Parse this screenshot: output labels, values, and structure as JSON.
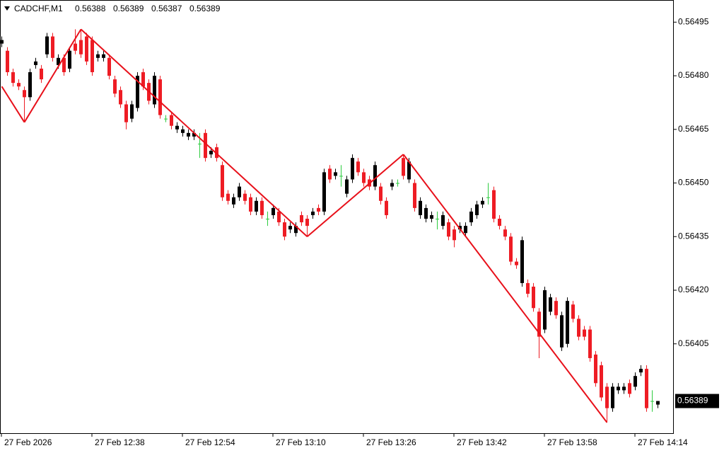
{
  "chart_data": {
    "type": "candlestick",
    "symbol": "CADCHF,M1",
    "categories": [
      "27 Feb 2026",
      null,
      null,
      null,
      null,
      null,
      null,
      null,
      null,
      null,
      null,
      null,
      null,
      null,
      null,
      null,
      "27 Feb 12:38",
      null,
      null,
      null,
      null,
      null,
      null,
      null,
      null,
      null,
      null,
      null,
      null,
      null,
      null,
      null,
      "27 Feb 12:54",
      null,
      null,
      null,
      null,
      null,
      null,
      null,
      null,
      null,
      null,
      null,
      null,
      null,
      null,
      null,
      "27 Feb 13:10",
      null,
      null,
      null,
      null,
      null,
      null,
      null,
      null,
      null,
      null,
      null,
      null,
      null,
      null,
      null,
      "27 Feb 13:26",
      null,
      null,
      null,
      null,
      null,
      null,
      null,
      null,
      null,
      null,
      null,
      null,
      null,
      null,
      null,
      "27 Feb 13:42",
      null,
      null,
      null,
      null,
      null,
      null,
      null,
      null,
      null,
      null,
      null,
      null,
      null,
      null,
      null,
      "27 Feb 13:58",
      null,
      null,
      null,
      null,
      null,
      null,
      null,
      null,
      null,
      null,
      null,
      null,
      null,
      null,
      null,
      "27 Feb 14:14",
      null,
      null,
      null,
      null
    ],
    "ohlc": [
      [
        0.56489,
        0.56491,
        0.56488,
        0.5649
      ],
      [
        0.56487,
        0.56488,
        0.5648,
        0.56481
      ],
      [
        0.56481,
        0.56482,
        0.56477,
        0.56478
      ],
      [
        0.56478,
        0.56479,
        0.56476,
        0.56477
      ],
      [
        0.56476,
        0.56477,
        0.56467,
        0.56474
      ],
      [
        0.56474,
        0.56482,
        0.56473,
        0.56481
      ],
      [
        0.56483,
        0.56485,
        0.56482,
        0.56484
      ],
      [
        0.56482,
        0.56483,
        0.56478,
        0.56479
      ],
      [
        0.56486,
        0.56492,
        0.56485,
        0.56491
      ],
      [
        0.56491,
        0.56492,
        0.56484,
        0.56485
      ],
      [
        0.56483,
        0.56486,
        0.56482,
        0.56485
      ],
      [
        0.56485,
        0.56486,
        0.5648,
        0.56481
      ],
      [
        0.56482,
        0.56488,
        0.56481,
        0.56487
      ],
      [
        0.56489,
        0.56493,
        0.56486,
        0.56487
      ],
      [
        0.5649,
        0.56493,
        0.56485,
        0.56486
      ],
      [
        0.56491,
        0.56492,
        0.56483,
        0.56484
      ],
      [
        0.5649,
        0.56491,
        0.5648,
        0.56481
      ],
      [
        0.56485,
        0.56487,
        0.56484,
        0.56486
      ],
      [
        0.56485,
        0.56487,
        0.56484,
        0.56486
      ],
      [
        0.56485,
        0.56486,
        0.56479,
        0.5648
      ],
      [
        0.56479,
        0.5648,
        0.56474,
        0.56475
      ],
      [
        0.56476,
        0.56477,
        0.56471,
        0.56472
      ],
      [
        0.56472,
        0.56473,
        0.56465,
        0.56467
      ],
      [
        0.56468,
        0.56473,
        0.56467,
        0.56472
      ],
      [
        0.56471,
        0.56481,
        0.5647,
        0.5648
      ],
      [
        0.56481,
        0.56482,
        0.56476,
        0.56477
      ],
      [
        0.56478,
        0.56479,
        0.56472,
        0.56473
      ],
      [
        0.56472,
        0.56481,
        0.56471,
        0.5648
      ],
      [
        0.56479,
        0.5648,
        0.56468,
        0.56469
      ],
      [
        0.56468,
        0.56469,
        0.56467,
        0.56468
      ],
      [
        0.56469,
        0.5647,
        0.56465,
        0.56466
      ],
      [
        0.56465,
        0.56467,
        0.56464,
        0.56466
      ],
      [
        0.56464,
        0.56466,
        0.56463,
        0.56465
      ],
      [
        0.56463,
        0.56465,
        0.56462,
        0.56464
      ],
      [
        0.56463,
        0.56465,
        0.56462,
        0.56464
      ],
      [
        0.56461,
        0.56464,
        0.56457,
        0.56461
      ],
      [
        0.56464,
        0.56465,
        0.56456,
        0.56457
      ],
      [
        0.56458,
        0.5646,
        0.56457,
        0.56459
      ],
      [
        0.5646,
        0.56461,
        0.56456,
        0.56457
      ],
      [
        0.56455,
        0.56456,
        0.56445,
        0.56446
      ],
      [
        0.56447,
        0.56448,
        0.56444,
        0.56445
      ],
      [
        0.56444,
        0.56447,
        0.56443,
        0.56446
      ],
      [
        0.56446,
        0.5645,
        0.56445,
        0.56449
      ],
      [
        0.56447,
        0.56448,
        0.56444,
        0.56445
      ],
      [
        0.56446,
        0.56447,
        0.56441,
        0.56442
      ],
      [
        0.56442,
        0.56446,
        0.56441,
        0.56445
      ],
      [
        0.56445,
        0.56446,
        0.5644,
        0.56441
      ],
      [
        0.5644,
        0.56442,
        0.56438,
        0.5644
      ],
      [
        0.56441,
        0.56444,
        0.5644,
        0.56443
      ],
      [
        0.56442,
        0.56443,
        0.56438,
        0.56439
      ],
      [
        0.56439,
        0.5644,
        0.56434,
        0.56435
      ],
      [
        0.56437,
        0.56439,
        0.56436,
        0.56438
      ],
      [
        0.56436,
        0.56439,
        0.56435,
        0.56438
      ],
      [
        0.56441,
        0.56442,
        0.56438,
        0.56439
      ],
      [
        0.5644,
        0.56441,
        0.56435,
        0.56438
      ],
      [
        0.56441,
        0.56443,
        0.5644,
        0.56442
      ],
      [
        0.56443,
        0.56444,
        0.56441,
        0.56442
      ],
      [
        0.56442,
        0.56454,
        0.56441,
        0.56453
      ],
      [
        0.56454,
        0.56455,
        0.5645,
        0.56451
      ],
      [
        0.56452,
        0.56454,
        0.56451,
        0.56453
      ],
      [
        0.56452,
        0.56455,
        0.56449,
        0.56452
      ],
      [
        0.56447,
        0.56452,
        0.56446,
        0.56451
      ],
      [
        0.56451,
        0.56458,
        0.5645,
        0.56457
      ],
      [
        0.56456,
        0.56457,
        0.56452,
        0.56453
      ],
      [
        0.56453,
        0.56454,
        0.56449,
        0.5645
      ],
      [
        0.56451,
        0.56452,
        0.56448,
        0.56449
      ],
      [
        0.56449,
        0.56456,
        0.56448,
        0.56455
      ],
      [
        0.56449,
        0.5645,
        0.56444,
        0.56445
      ],
      [
        0.56445,
        0.56446,
        0.5644,
        0.56441
      ],
      [
        0.56449,
        0.56451,
        0.56448,
        0.5645
      ],
      [
        0.5645,
        0.56451,
        0.56449,
        0.5645
      ],
      [
        0.56457,
        0.56458,
        0.56451,
        0.56452
      ],
      [
        0.56451,
        0.56457,
        0.5645,
        0.56456
      ],
      [
        0.5645,
        0.56451,
        0.56442,
        0.56443
      ],
      [
        0.56441,
        0.56446,
        0.5644,
        0.56445
      ],
      [
        0.5644,
        0.56444,
        0.56439,
        0.56443
      ],
      [
        0.5644,
        0.56442,
        0.56439,
        0.56441
      ],
      [
        0.5644,
        0.56442,
        0.56437,
        0.5644
      ],
      [
        0.56438,
        0.56442,
        0.56437,
        0.56441
      ],
      [
        0.56439,
        0.5644,
        0.56434,
        0.56435
      ],
      [
        0.56437,
        0.56438,
        0.56432,
        0.56434
      ],
      [
        0.56437,
        0.56439,
        0.56436,
        0.56438
      ],
      [
        0.56436,
        0.56439,
        0.56435,
        0.56438
      ],
      [
        0.56439,
        0.56443,
        0.56438,
        0.56442
      ],
      [
        0.56441,
        0.56445,
        0.5644,
        0.56444
      ],
      [
        0.56444,
        0.56446,
        0.56443,
        0.56445
      ],
      [
        0.56446,
        0.5645,
        0.56444,
        0.56446
      ],
      [
        0.56448,
        0.56449,
        0.56439,
        0.5644
      ],
      [
        0.5644,
        0.56441,
        0.56437,
        0.56438
      ],
      [
        0.56437,
        0.56438,
        0.56434,
        0.56435
      ],
      [
        0.56435,
        0.56436,
        0.56427,
        0.56428
      ],
      [
        0.56428,
        0.56429,
        0.56426,
        0.56427
      ],
      [
        0.56422,
        0.56435,
        0.56421,
        0.56434
      ],
      [
        0.56422,
        0.56423,
        0.56418,
        0.56419
      ],
      [
        0.56421,
        0.56422,
        0.56414,
        0.56415
      ],
      [
        0.56414,
        0.56415,
        0.56401,
        0.56407
      ],
      [
        0.56409,
        0.56421,
        0.56408,
        0.5642
      ],
      [
        0.56414,
        0.56419,
        0.56413,
        0.56418
      ],
      [
        0.56417,
        0.56418,
        0.56412,
        0.56413
      ],
      [
        0.56404,
        0.56414,
        0.56403,
        0.56413
      ],
      [
        0.56405,
        0.56418,
        0.56404,
        0.56417
      ],
      [
        0.56416,
        0.56417,
        0.56411,
        0.56412
      ],
      [
        0.56412,
        0.56413,
        0.56406,
        0.56407
      ],
      [
        0.56409,
        0.5641,
        0.56406,
        0.56407
      ],
      [
        0.56409,
        0.5641,
        0.564,
        0.56401
      ],
      [
        0.56402,
        0.56403,
        0.56393,
        0.56394
      ],
      [
        0.56399,
        0.564,
        0.56389,
        0.5639
      ],
      [
        0.56393,
        0.56394,
        0.56383,
        0.56387
      ],
      [
        0.56387,
        0.56394,
        0.56386,
        0.56393
      ],
      [
        0.56392,
        0.56394,
        0.56391,
        0.56393
      ],
      [
        0.56392,
        0.56394,
        0.56391,
        0.56393
      ],
      [
        0.56394,
        0.56395,
        0.5639,
        0.56391
      ],
      [
        0.56393,
        0.56397,
        0.56392,
        0.56396
      ],
      [
        0.56397,
        0.56399,
        0.56396,
        0.56398
      ],
      [
        0.56398,
        0.56399,
        0.56386,
        0.56387
      ],
      [
        0.56389,
        0.56392,
        0.56386,
        0.56389
      ],
      [
        0.56388,
        0.56389,
        0.56387,
        0.56389
      ]
    ],
    "zigzag": {
      "color": "#e8101a",
      "values": [
        0.56477,
        null,
        null,
        null,
        0.56467,
        null,
        null,
        null,
        null,
        null,
        null,
        null,
        null,
        null,
        0.56493,
        null,
        null,
        null,
        null,
        null,
        null,
        null,
        null,
        null,
        null,
        null,
        null,
        null,
        null,
        null,
        null,
        null,
        null,
        null,
        null,
        null,
        null,
        null,
        null,
        null,
        null,
        null,
        null,
        null,
        null,
        null,
        null,
        null,
        null,
        null,
        null,
        null,
        null,
        null,
        0.56435,
        null,
        null,
        null,
        null,
        null,
        null,
        null,
        null,
        null,
        null,
        null,
        null,
        null,
        null,
        null,
        null,
        0.56458,
        null,
        null,
        null,
        null,
        null,
        null,
        null,
        null,
        null,
        null,
        null,
        null,
        null,
        null,
        null,
        null,
        null,
        null,
        null,
        null,
        null,
        null,
        null,
        null,
        null,
        null,
        null,
        null,
        null,
        null,
        null,
        null,
        null,
        null,
        null,
        0.56383,
        null,
        null,
        null,
        null,
        null,
        null,
        null,
        null,
        null
      ]
    },
    "bull_color": "#000000",
    "bear_color": "#ee1c24",
    "doji_color": "#2ecc40",
    "ylim": [
      0.5638,
      0.56501
    ],
    "yticks": [
      0.56495,
      {
        "value": 0.5648,
        "label": "0.56480"
      },
      0.56465,
      {
        "value": 0.5645,
        "label": "0.56450"
      },
      0.56435,
      {
        "value": 0.5642,
        "label": "0.56420"
      },
      0.56405
    ]
  }
}
